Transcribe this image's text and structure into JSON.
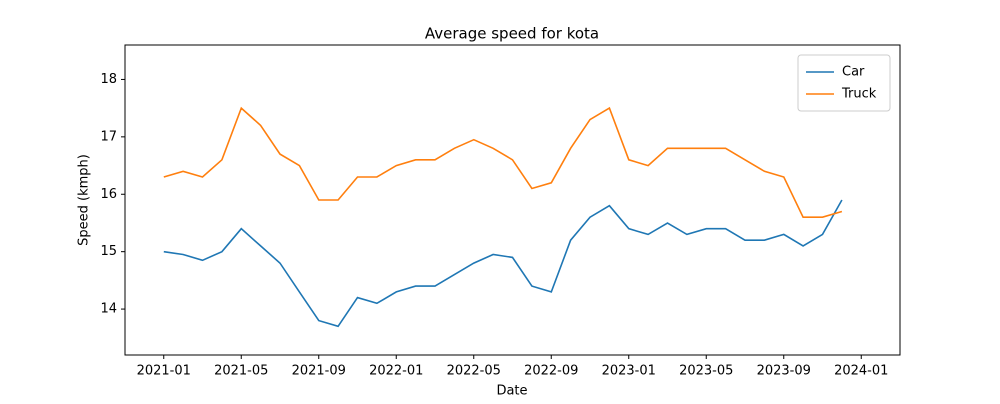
{
  "chart_data": {
    "type": "line",
    "title": "Average speed for kota",
    "x_label": "Date",
    "y_label": "Speed (kmph)",
    "x": [
      "2021-01",
      "2021-02",
      "2021-03",
      "2021-04",
      "2021-05",
      "2021-06",
      "2021-07",
      "2021-08",
      "2021-09",
      "2021-10",
      "2021-11",
      "2021-12",
      "2022-01",
      "2022-02",
      "2022-03",
      "2022-04",
      "2022-05",
      "2022-06",
      "2022-07",
      "2022-08",
      "2022-09",
      "2022-10",
      "2022-11",
      "2022-12",
      "2023-01",
      "2023-02",
      "2023-03",
      "2023-04",
      "2023-05",
      "2023-06",
      "2023-07",
      "2023-08",
      "2023-09",
      "2023-10",
      "2023-11",
      "2023-12"
    ],
    "series": [
      {
        "name": "Car",
        "color": "#1f77b4",
        "values": [
          15.0,
          14.95,
          14.85,
          15.0,
          15.4,
          15.1,
          14.8,
          14.3,
          13.8,
          13.7,
          14.2,
          14.1,
          14.3,
          14.4,
          14.4,
          14.6,
          14.8,
          14.95,
          14.9,
          14.4,
          14.3,
          15.2,
          15.6,
          15.8,
          15.4,
          15.3,
          15.5,
          15.3,
          15.4,
          15.4,
          15.2,
          15.2,
          15.3,
          15.1,
          15.3,
          15.9
        ]
      },
      {
        "name": "Truck",
        "color": "#ff7f0e",
        "values": [
          16.3,
          16.4,
          16.3,
          16.6,
          17.5,
          17.2,
          16.7,
          16.5,
          15.9,
          15.9,
          16.3,
          16.3,
          16.5,
          16.6,
          16.6,
          16.8,
          16.95,
          16.8,
          16.6,
          16.1,
          16.2,
          16.8,
          17.3,
          17.5,
          16.6,
          16.5,
          16.8,
          16.8,
          16.8,
          16.8,
          16.6,
          16.4,
          16.3,
          15.6,
          15.6,
          15.7
        ]
      }
    ],
    "xlim": [
      "2020-11",
      "2024-03"
    ],
    "xticks": [
      "2021-01",
      "2021-05",
      "2021-09",
      "2022-01",
      "2022-05",
      "2022-09",
      "2023-01",
      "2023-05",
      "2023-09",
      "2024-01"
    ],
    "ylim": [
      13.2,
      18.6
    ],
    "yticks": [
      14,
      15,
      16,
      17,
      18
    ],
    "legend": "upper right"
  }
}
